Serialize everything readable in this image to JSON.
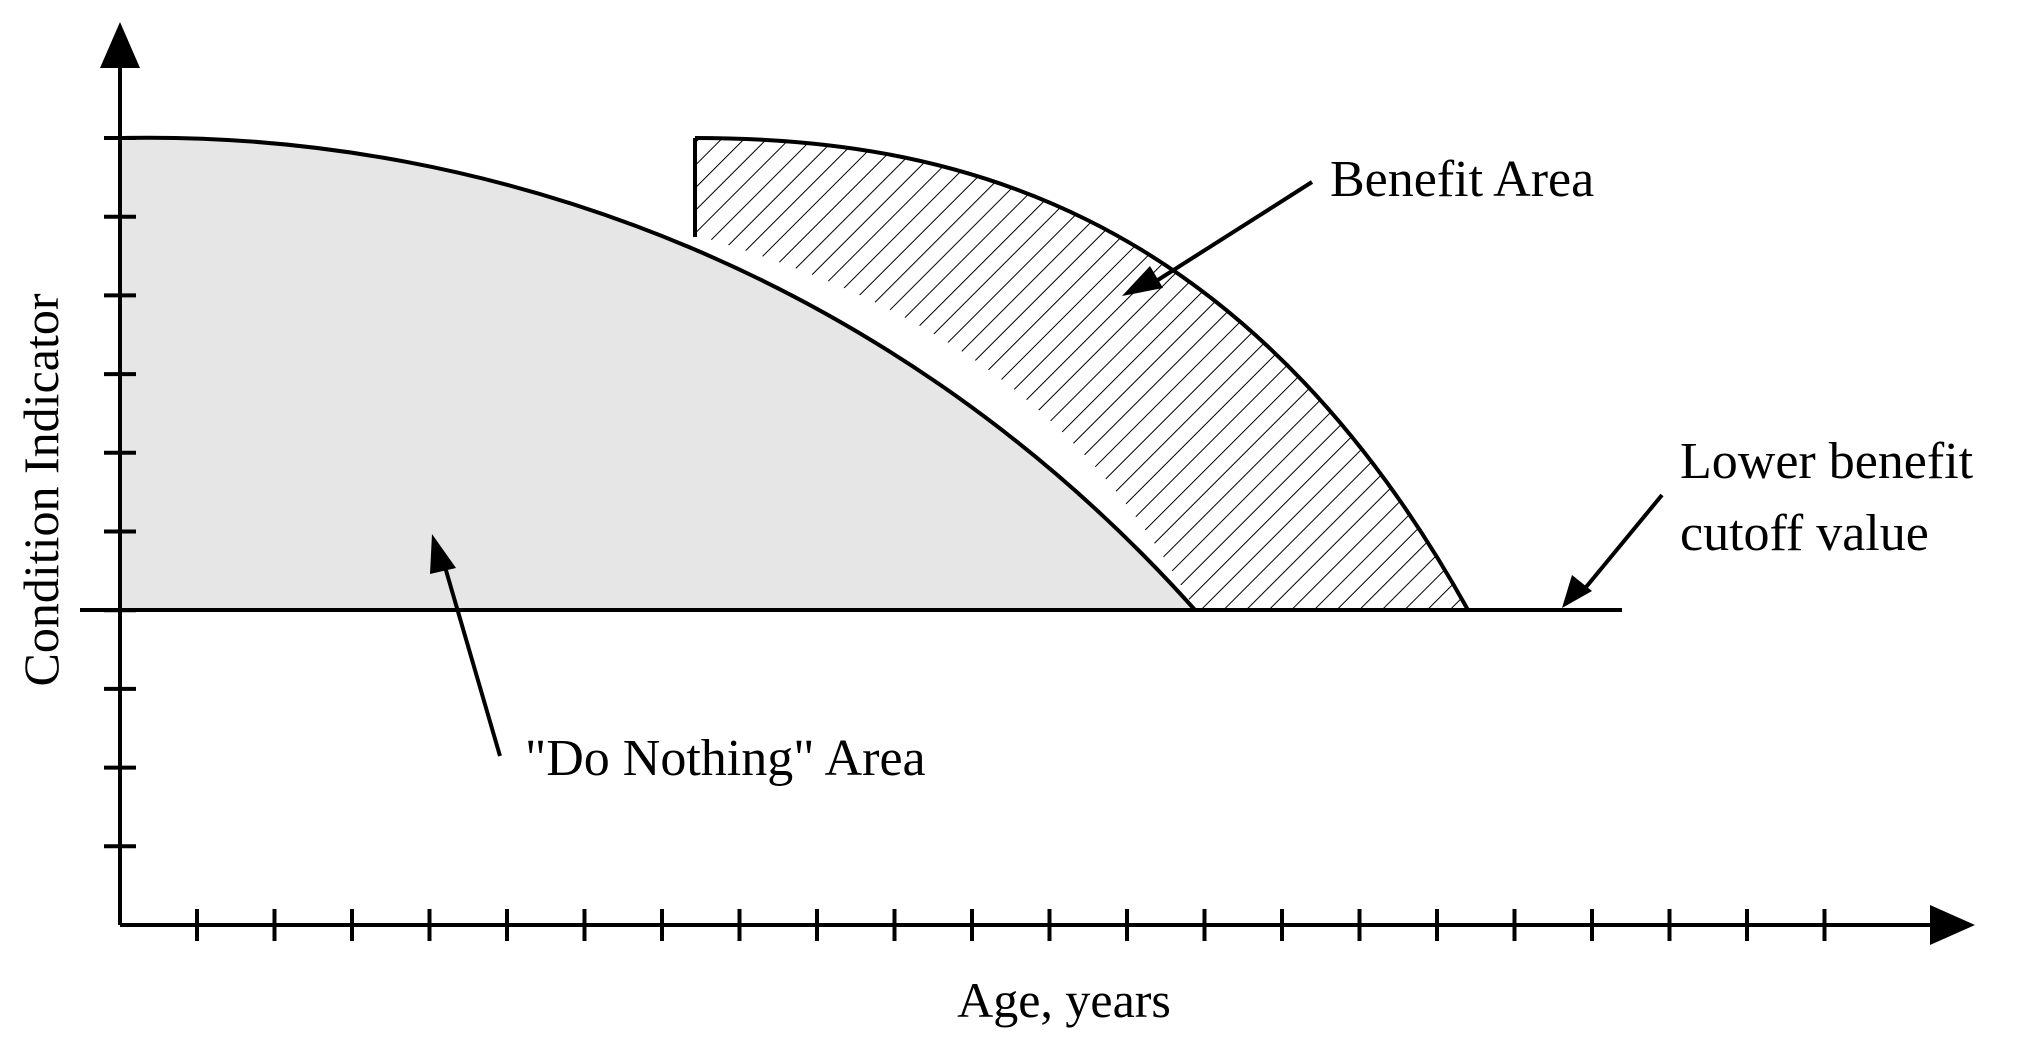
{
  "diagram": {
    "axes": {
      "x_label": "Age, years",
      "y_label": "Condition Indicator"
    },
    "annotations": {
      "benefit_area": "Benefit Area",
      "do_nothing_area": "\"Do Nothing\" Area",
      "cutoff_line1": "Lower benefit",
      "cutoff_line2": "cutoff value"
    },
    "colors": {
      "do_nothing_fill": "#e6e6e6",
      "line": "#000000",
      "background": "#ffffff"
    },
    "fill_patterns": {
      "do_nothing_area": "solid-light-gray",
      "benefit_area": "diagonal-hatch"
    }
  }
}
